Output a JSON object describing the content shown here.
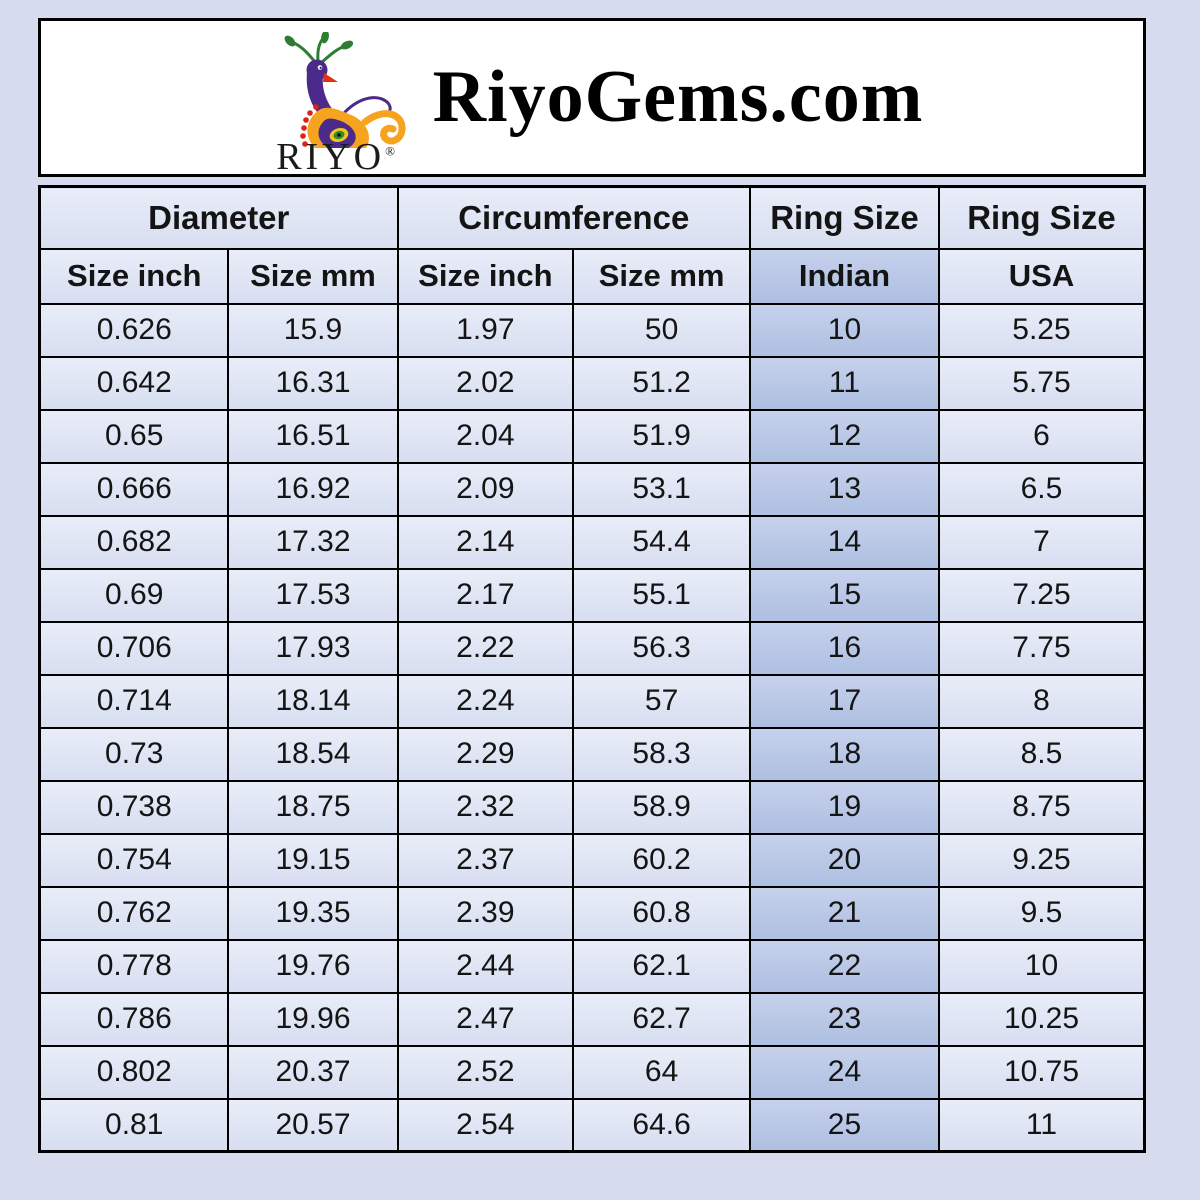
{
  "header": {
    "site_title": "RiyoGems.com",
    "logo_text": "RIYO",
    "registered_mark": "®"
  },
  "chart_data": {
    "type": "table",
    "title": "RiyoGems.com ring size conversion chart",
    "group_headers": [
      "Diameter",
      "Circumference",
      "Ring Size",
      "Ring Size"
    ],
    "sub_headers": [
      "Size inch",
      "Size mm",
      "Size inch",
      "Size mm",
      "Indian",
      "USA"
    ],
    "highlight_column": "Indian",
    "highlight_column_index": 4,
    "rows": [
      [
        "0.626",
        "15.9",
        "1.97",
        "50",
        "10",
        "5.25"
      ],
      [
        "0.642",
        "16.31",
        "2.02",
        "51.2",
        "11",
        "5.75"
      ],
      [
        "0.65",
        "16.51",
        "2.04",
        "51.9",
        "12",
        "6"
      ],
      [
        "0.666",
        "16.92",
        "2.09",
        "53.1",
        "13",
        "6.5"
      ],
      [
        "0.682",
        "17.32",
        "2.14",
        "54.4",
        "14",
        "7"
      ],
      [
        "0.69",
        "17.53",
        "2.17",
        "55.1",
        "15",
        "7.25"
      ],
      [
        "0.706",
        "17.93",
        "2.22",
        "56.3",
        "16",
        "7.75"
      ],
      [
        "0.714",
        "18.14",
        "2.24",
        "57",
        "17",
        "8"
      ],
      [
        "0.73",
        "18.54",
        "2.29",
        "58.3",
        "18",
        "8.5"
      ],
      [
        "0.738",
        "18.75",
        "2.32",
        "58.9",
        "19",
        "8.75"
      ],
      [
        "0.754",
        "19.15",
        "2.37",
        "60.2",
        "20",
        "9.25"
      ],
      [
        "0.762",
        "19.35",
        "2.39",
        "60.8",
        "21",
        "9.5"
      ],
      [
        "0.778",
        "19.76",
        "2.44",
        "62.1",
        "22",
        "10"
      ],
      [
        "0.786",
        "19.96",
        "2.47",
        "62.7",
        "23",
        "10.25"
      ],
      [
        "0.802",
        "20.37",
        "2.52",
        "64",
        "24",
        "10.75"
      ],
      [
        "0.81",
        "20.57",
        "2.54",
        "64.6",
        "25",
        "11"
      ]
    ]
  },
  "colors": {
    "page_bg": "#d6dbee",
    "cell_bg_top": "#e8edf8",
    "cell_bg_bottom": "#d7def0",
    "highlight_bg_top": "#c6d1ec",
    "highlight_bg_bottom": "#aebfe1",
    "border": "#000000",
    "header_box_bg": "#ffffff",
    "logo_purple": "#4b2a8c",
    "logo_orange": "#f6a41f",
    "logo_green": "#2e7d32",
    "logo_red": "#e3310f"
  }
}
